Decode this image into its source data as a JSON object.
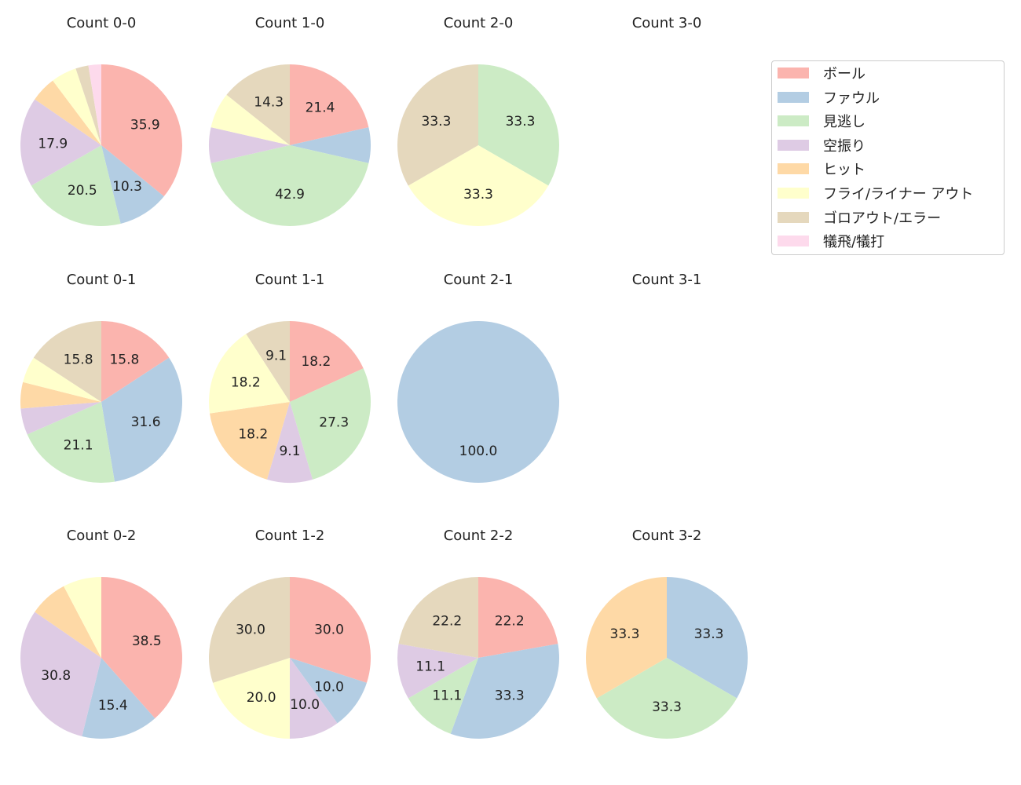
{
  "chart_data": {
    "type": "pie",
    "categories": [
      "ボール",
      "ファウル",
      "見逃し",
      "空振り",
      "ヒット",
      "フライ/ライナー アウト",
      "ゴロアウト/エラー",
      "犠飛/犠打"
    ],
    "colors": [
      "#fbb4ae",
      "#b3cde3",
      "#ccebc5",
      "#decbe4",
      "#fed9a6",
      "#ffffcc",
      "#e5d8bd",
      "#fddaec"
    ],
    "legend_position": "right",
    "start_angle": 90,
    "direction": "clockwise",
    "label_format": "percent, 1 decimal, hidden for small slices",
    "pies": [
      {
        "title": "Count 0-0",
        "values": [
          14,
          4,
          8,
          7,
          2,
          2,
          1,
          1
        ]
      },
      {
        "title": "Count 1-0",
        "values": [
          3,
          1,
          6,
          1,
          0,
          1,
          2,
          0
        ]
      },
      {
        "title": "Count 2-0",
        "values": [
          0,
          0,
          1,
          0,
          0,
          1,
          1,
          0
        ]
      },
      {
        "title": "Count 3-0",
        "values": []
      },
      {
        "title": "Count 0-1",
        "values": [
          3,
          6,
          4,
          1,
          1,
          1,
          3,
          0
        ]
      },
      {
        "title": "Count 1-1",
        "values": [
          2,
          0,
          3,
          1,
          2,
          2,
          1,
          0
        ]
      },
      {
        "title": "Count 2-1",
        "values": [
          0,
          1,
          0,
          0,
          0,
          0,
          0,
          0
        ]
      },
      {
        "title": "Count 3-1",
        "values": []
      },
      {
        "title": "Count 0-2",
        "values": [
          5,
          2,
          0,
          4,
          1,
          1,
          0,
          0
        ]
      },
      {
        "title": "Count 1-2",
        "values": [
          3,
          1,
          0,
          1,
          0,
          2,
          3,
          0
        ]
      },
      {
        "title": "Count 2-2",
        "values": [
          2,
          3,
          1,
          1,
          0,
          0,
          2,
          0
        ]
      },
      {
        "title": "Count 3-2",
        "values": [
          0,
          1,
          1,
          0,
          1,
          0,
          0,
          0
        ]
      }
    ]
  }
}
